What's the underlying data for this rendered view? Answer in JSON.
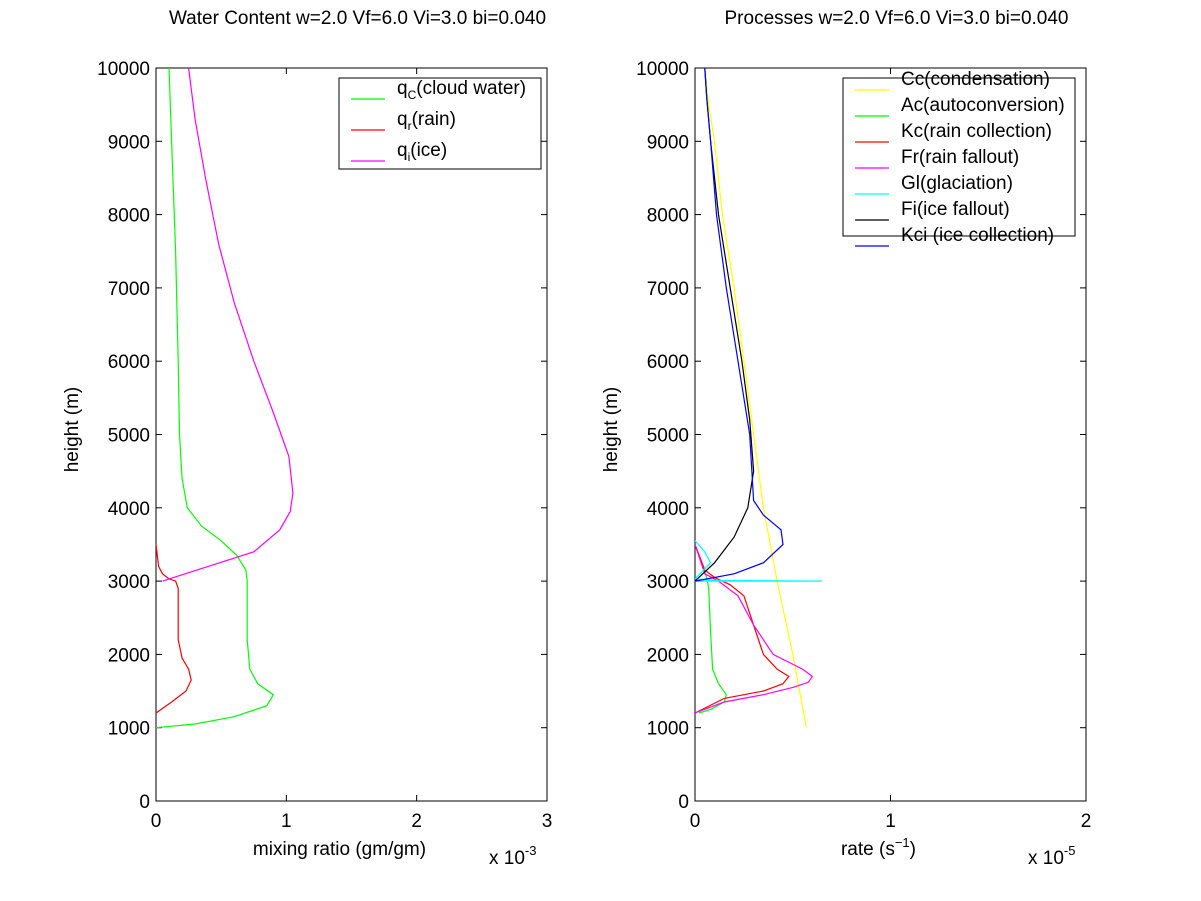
{
  "chart_data": [
    {
      "type": "line",
      "title": "Water Content w=2.0 Vf=6.0 Vi=3.0 bi=0.040",
      "xlabel": "mixing ratio (gm/gm)",
      "ylabel": "height (m)",
      "xlim": [
        0,
        3
      ],
      "ylim": [
        0,
        10000
      ],
      "x_multiplier": "x 10",
      "x_multiplier_exp": "-3",
      "xticks": [
        "0",
        "1",
        "2",
        "3"
      ],
      "yticks": [
        "0",
        "1000",
        "2000",
        "3000",
        "4000",
        "5000",
        "6000",
        "7000",
        "8000",
        "9000",
        "10000"
      ],
      "legend_position": "top-right",
      "series": [
        {
          "name": "q",
          "name_sub": "C",
          "name_rest": "(cloud water)",
          "color": "#00ff00",
          "x": [
            0,
            0.3,
            0.6,
            0.85,
            0.9,
            0.78,
            0.72,
            0.7,
            0.7,
            0.7,
            0.69,
            0.62,
            0.5,
            0.35,
            0.24,
            0.2,
            0.18,
            0.17,
            0.15,
            0.12,
            0.1
          ],
          "y": [
            1000,
            1050,
            1150,
            1300,
            1450,
            1600,
            1800,
            2200,
            2600,
            3000,
            3150,
            3350,
            3550,
            3750,
            4000,
            4400,
            5000,
            6000,
            7500,
            9000,
            10000
          ]
        },
        {
          "name": "q",
          "name_sub": "r",
          "name_rest": "(rain)",
          "color": "#ff0000",
          "x": [
            0,
            0.12,
            0.23,
            0.27,
            0.25,
            0.2,
            0.17,
            0.17,
            0.15,
            0.1,
            0.05,
            0.02,
            0.01,
            0.0
          ],
          "y": [
            1200,
            1350,
            1500,
            1650,
            1800,
            1950,
            2200,
            2900,
            3000,
            3030,
            3100,
            3200,
            3350,
            3500
          ]
        },
        {
          "name": "q",
          "name_sub": "i",
          "name_rest": "(ice)",
          "color": "#ff00ff",
          "x": [
            0.05,
            0.4,
            0.75,
            0.95,
            1.03,
            1.05,
            1.02,
            0.9,
            0.75,
            0.6,
            0.48,
            0.38,
            0.3,
            0.25
          ],
          "y": [
            3000,
            3200,
            3400,
            3700,
            3950,
            4200,
            4700,
            5300,
            6000,
            6800,
            7600,
            8500,
            9300,
            10000
          ]
        }
      ]
    },
    {
      "type": "line",
      "title": "Processes w=2.0 Vf=6.0 Vi=3.0 bi=0.040",
      "xlabel": "rate (s",
      "xlabel_sup": "−1",
      "xlabel_end": ")",
      "ylabel": "height (m)",
      "xlim": [
        0,
        2
      ],
      "ylim": [
        0,
        10000
      ],
      "x_multiplier": "x 10",
      "x_multiplier_exp": "-5",
      "xticks": [
        "0",
        "1",
        "2"
      ],
      "yticks": [
        "0",
        "1000",
        "2000",
        "3000",
        "4000",
        "5000",
        "6000",
        "7000",
        "8000",
        "9000",
        "10000"
      ],
      "legend_position": "top-right",
      "series": [
        {
          "name": "Cc(condensation)",
          "color": "#ffff00",
          "x": [
            0.57,
            0.5,
            0.42,
            0.35,
            0.3,
            0.25,
            0.2,
            0.14,
            0.1,
            0.07,
            0.05
          ],
          "y": [
            1000,
            2000,
            3000,
            4000,
            5000,
            6000,
            7000,
            8000,
            9000,
            9500,
            10000
          ]
        },
        {
          "name": "Ac(autoconversion)",
          "color": "#00ff00",
          "x": [
            0.02,
            0.08,
            0.15,
            0.16,
            0.12,
            0.09,
            0.08,
            0.07,
            0.06,
            0.04,
            0.0
          ],
          "y": [
            1200,
            1250,
            1350,
            1450,
            1600,
            1800,
            2300,
            2900,
            3050,
            3200,
            3500
          ]
        },
        {
          "name": "Kc(rain collection)",
          "color": "#ff0000",
          "x": [
            0,
            0.15,
            0.35,
            0.45,
            0.48,
            0.42,
            0.35,
            0.3,
            0.25,
            0.18,
            0.1,
            0.05,
            0.0
          ],
          "y": [
            1200,
            1400,
            1500,
            1600,
            1700,
            1800,
            2000,
            2400,
            2800,
            2950,
            3050,
            3150,
            3500
          ]
        },
        {
          "name": "Fr(rain fallout)",
          "color": "#ff00ff",
          "x": [
            0,
            0.15,
            0.35,
            0.5,
            0.58,
            0.6,
            0.55,
            0.4,
            0.3,
            0.22,
            0.12,
            0.05,
            0.0
          ],
          "y": [
            1200,
            1350,
            1450,
            1550,
            1620,
            1700,
            1800,
            2000,
            2400,
            2800,
            3000,
            3100,
            3500
          ]
        },
        {
          "name": "Gl(glaciation)",
          "color": "#00ffff",
          "x": [
            0.0,
            0.65,
            0.1,
            0.0,
            0.08,
            0.05,
            0.0
          ],
          "y": [
            3000,
            3000,
            3010,
            3030,
            3250,
            3400,
            3550
          ]
        },
        {
          "name": "Fi(ice fallout)",
          "color": "#000000",
          "x": [
            0,
            0.1,
            0.2,
            0.27,
            0.3,
            0.28,
            0.24,
            0.18,
            0.12,
            0.08,
            0.06,
            0.05
          ],
          "y": [
            3000,
            3250,
            3600,
            4000,
            4500,
            5200,
            6000,
            7000,
            8000,
            9000,
            9600,
            10000
          ]
        },
        {
          "name": "Kci (ice collection)",
          "color": "#0000ff",
          "x": [
            0,
            0.2,
            0.35,
            0.45,
            0.44,
            0.35,
            0.3,
            0.28,
            0.22,
            0.16,
            0.11,
            0.08,
            0.06,
            0.05
          ],
          "y": [
            3000,
            3100,
            3250,
            3500,
            3700,
            3900,
            4100,
            5000,
            6000,
            7000,
            8000,
            9000,
            9600,
            10000
          ]
        }
      ]
    }
  ]
}
